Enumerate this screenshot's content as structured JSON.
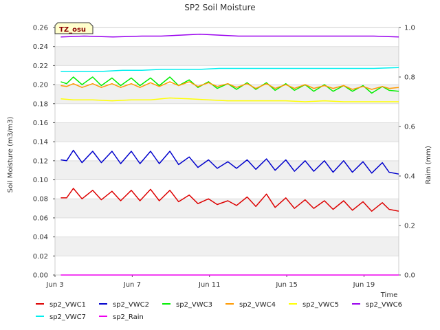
{
  "chart_data": {
    "type": "line",
    "title": "SP2 Soil Moisture",
    "xlabel": "Time",
    "ylabel": "Soil Moisture (m3/m3)",
    "y2label": "Raim (mm)",
    "badge": "TZ_osu",
    "x_ticks": [
      {
        "day": 3,
        "label": "Jun 3"
      },
      {
        "day": 7,
        "label": "Jun 7"
      },
      {
        "day": 11,
        "label": "Jun 11"
      },
      {
        "day": 15,
        "label": "Jun 15"
      },
      {
        "day": 19,
        "label": "Jun 19"
      }
    ],
    "xlim": [
      "Jun 3",
      "Jun 20.8"
    ],
    "x_start_day": 3,
    "x_end_day": 20.8,
    "ylim": [
      0,
      0.26
    ],
    "y_ticks": [
      0.0,
      0.02,
      0.04,
      0.06,
      0.08,
      0.1,
      0.12,
      0.14,
      0.16,
      0.18,
      0.2,
      0.22,
      0.24,
      0.26
    ],
    "y_tick_labels": [
      "0.00",
      "0.02",
      "0.04",
      "0.06",
      "0.08",
      "0.10",
      "0.12",
      "0.14",
      "0.16",
      "0.18",
      "0.20",
      "0.22",
      "0.24",
      "0.26"
    ],
    "y2lim": [
      0,
      1.0
    ],
    "y2_ticks": [
      0.0,
      0.2,
      0.4,
      0.6,
      0.8,
      1.0
    ],
    "y2_tick_labels": [
      "0.0",
      "0.2",
      "0.4",
      "0.6",
      "0.8",
      "1.0"
    ],
    "grid": true,
    "legend_position": "bottom",
    "series": [
      {
        "name": "sp2_VWC1",
        "color": "#dd0000",
        "axis": "left",
        "x": [
          3.3,
          3.6,
          3.95,
          4.4,
          4.95,
          5.4,
          5.95,
          6.4,
          6.95,
          7.4,
          7.95,
          8.4,
          8.95,
          9.4,
          9.95,
          10.4,
          10.95,
          11.4,
          11.95,
          12.4,
          12.95,
          13.4,
          13.95,
          14.4,
          14.95,
          15.4,
          15.95,
          16.4,
          16.95,
          17.4,
          17.95,
          18.4,
          18.95,
          19.4,
          19.95,
          20.3,
          20.8
        ],
        "y": [
          0.081,
          0.081,
          0.091,
          0.08,
          0.089,
          0.079,
          0.088,
          0.078,
          0.089,
          0.078,
          0.09,
          0.078,
          0.089,
          0.077,
          0.084,
          0.075,
          0.08,
          0.074,
          0.078,
          0.073,
          0.082,
          0.072,
          0.085,
          0.071,
          0.081,
          0.07,
          0.079,
          0.07,
          0.078,
          0.069,
          0.078,
          0.068,
          0.077,
          0.067,
          0.076,
          0.069,
          0.067
        ]
      },
      {
        "name": "sp2_VWC2",
        "color": "#0000cc",
        "axis": "left",
        "x": [
          3.3,
          3.6,
          3.95,
          4.4,
          4.95,
          5.4,
          5.95,
          6.4,
          6.95,
          7.4,
          7.95,
          8.4,
          8.95,
          9.4,
          9.95,
          10.4,
          10.95,
          11.4,
          11.95,
          12.4,
          12.95,
          13.4,
          13.95,
          14.4,
          14.95,
          15.4,
          15.95,
          16.4,
          16.95,
          17.4,
          17.95,
          18.4,
          18.95,
          19.4,
          19.95,
          20.3,
          20.8
        ],
        "y": [
          0.121,
          0.12,
          0.131,
          0.118,
          0.13,
          0.118,
          0.13,
          0.117,
          0.13,
          0.117,
          0.13,
          0.117,
          0.13,
          0.116,
          0.124,
          0.113,
          0.121,
          0.112,
          0.119,
          0.112,
          0.121,
          0.111,
          0.122,
          0.11,
          0.121,
          0.109,
          0.12,
          0.109,
          0.12,
          0.108,
          0.12,
          0.108,
          0.119,
          0.107,
          0.118,
          0.108,
          0.106
        ]
      },
      {
        "name": "sp2_VWC3",
        "color": "#00ee00",
        "axis": "left",
        "x": [
          3.3,
          3.6,
          3.95,
          4.4,
          4.95,
          5.4,
          5.95,
          6.4,
          6.95,
          7.4,
          7.95,
          8.4,
          8.95,
          9.4,
          9.95,
          10.4,
          10.95,
          11.4,
          11.95,
          12.4,
          12.95,
          13.4,
          13.95,
          14.4,
          14.95,
          15.4,
          15.95,
          16.4,
          16.95,
          17.4,
          17.95,
          18.4,
          18.95,
          19.4,
          19.95,
          20.3,
          20.8
        ],
        "y": [
          0.203,
          0.201,
          0.208,
          0.2,
          0.208,
          0.199,
          0.207,
          0.199,
          0.207,
          0.199,
          0.207,
          0.199,
          0.208,
          0.199,
          0.205,
          0.197,
          0.203,
          0.196,
          0.201,
          0.195,
          0.202,
          0.195,
          0.202,
          0.194,
          0.201,
          0.194,
          0.2,
          0.193,
          0.2,
          0.193,
          0.199,
          0.193,
          0.199,
          0.191,
          0.198,
          0.194,
          0.193
        ]
      },
      {
        "name": "sp2_VWC4",
        "color": "#ff9900",
        "axis": "left",
        "x": [
          3.3,
          3.6,
          3.95,
          4.4,
          4.95,
          5.4,
          5.95,
          6.4,
          6.95,
          7.4,
          7.95,
          8.4,
          8.95,
          9.4,
          9.95,
          10.4,
          10.95,
          11.4,
          11.95,
          12.4,
          12.95,
          13.4,
          13.95,
          14.4,
          14.95,
          15.4,
          15.95,
          16.4,
          16.95,
          17.4,
          17.95,
          18.4,
          18.95,
          19.4,
          19.95,
          20.3,
          20.8
        ],
        "y": [
          0.199,
          0.198,
          0.201,
          0.197,
          0.201,
          0.197,
          0.201,
          0.197,
          0.201,
          0.197,
          0.202,
          0.198,
          0.203,
          0.199,
          0.203,
          0.198,
          0.202,
          0.198,
          0.201,
          0.197,
          0.201,
          0.196,
          0.201,
          0.196,
          0.2,
          0.196,
          0.2,
          0.196,
          0.199,
          0.196,
          0.199,
          0.195,
          0.198,
          0.195,
          0.198,
          0.196,
          0.197
        ]
      },
      {
        "name": "sp2_VWC5",
        "color": "#ffff00",
        "axis": "left",
        "x": [
          3.3,
          3.95,
          4.95,
          5.95,
          6.95,
          7.95,
          8.95,
          9.95,
          10.95,
          11.95,
          12.95,
          13.95,
          14.95,
          15.95,
          16.95,
          17.95,
          18.95,
          19.95,
          20.8
        ],
        "y": [
          0.185,
          0.184,
          0.184,
          0.183,
          0.184,
          0.184,
          0.186,
          0.185,
          0.184,
          0.183,
          0.183,
          0.183,
          0.183,
          0.182,
          0.183,
          0.182,
          0.182,
          0.182,
          0.182
        ]
      },
      {
        "name": "sp2_VWC6",
        "color": "#9900ee",
        "axis": "left",
        "x": [
          3.3,
          4.5,
          6.0,
          7.5,
          8.5,
          9.5,
          10.5,
          11.5,
          12.5,
          14.0,
          15.5,
          17.0,
          18.5,
          19.5,
          20.8
        ],
        "y": [
          0.25,
          0.251,
          0.25,
          0.251,
          0.251,
          0.252,
          0.253,
          0.252,
          0.251,
          0.251,
          0.251,
          0.251,
          0.251,
          0.251,
          0.25
        ]
      },
      {
        "name": "sp2_VWC7",
        "color": "#00eeee",
        "axis": "left",
        "x": [
          3.3,
          4.5,
          5.5,
          6.5,
          7.5,
          8.5,
          9.5,
          10.5,
          11.5,
          12.5,
          14.0,
          15.5,
          17.0,
          18.5,
          19.5,
          20.8
        ],
        "y": [
          0.214,
          0.214,
          0.214,
          0.215,
          0.215,
          0.216,
          0.216,
          0.216,
          0.217,
          0.217,
          0.217,
          0.217,
          0.217,
          0.217,
          0.217,
          0.218
        ]
      },
      {
        "name": "sp2_Rain",
        "color": "#ee00ee",
        "axis": "right",
        "x": [
          3.3,
          20.8
        ],
        "y": [
          0.0,
          0.0
        ]
      }
    ]
  }
}
